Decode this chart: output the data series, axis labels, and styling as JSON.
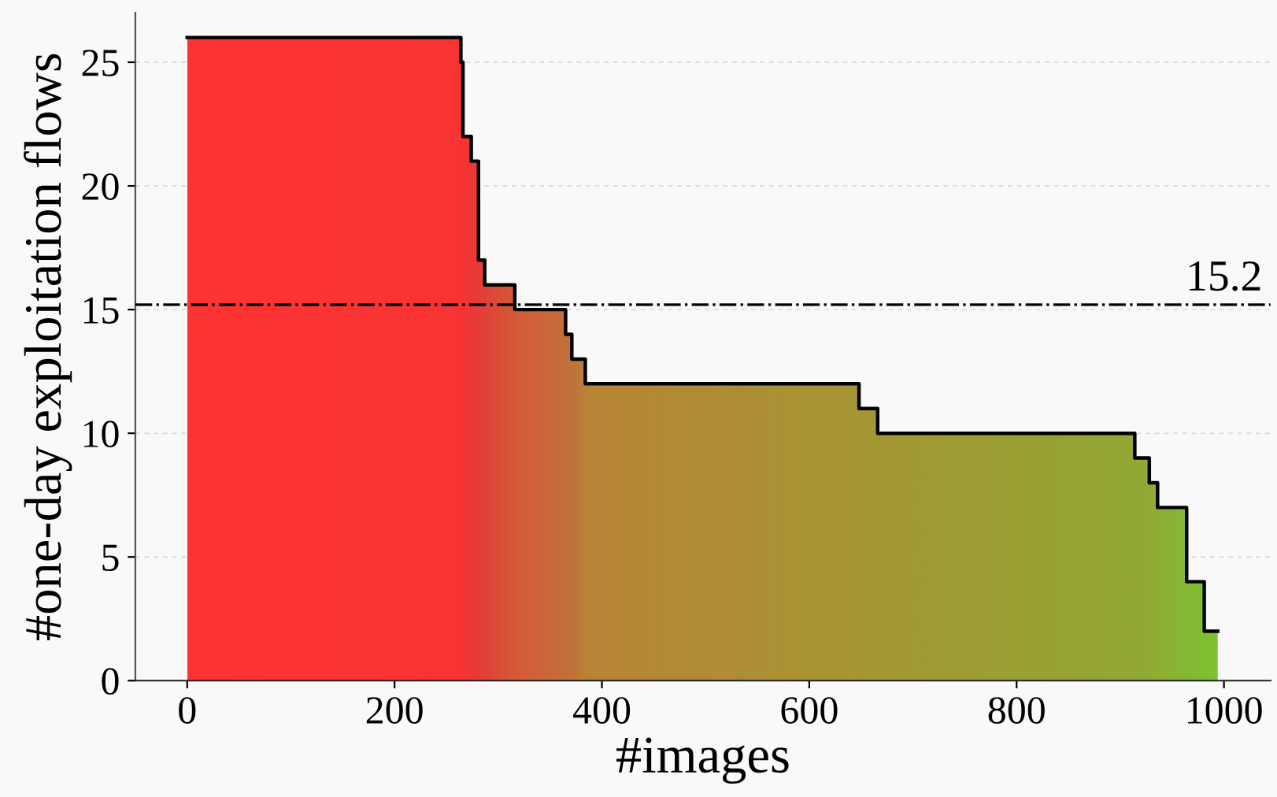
{
  "chart_data": {
    "type": "step",
    "xlabel": "#images",
    "ylabel": "#one-day exploitation flows",
    "x": [
      0,
      264,
      266,
      274,
      281,
      287,
      316,
      365,
      371,
      384,
      648,
      666,
      914,
      928,
      936,
      964,
      981,
      994
    ],
    "series": [
      {
        "color": "#000000",
        "values": [
          26,
          25,
          22,
          21,
          17,
          16,
          15,
          14,
          13,
          12,
          11,
          10,
          9,
          8,
          7,
          4,
          2,
          2
        ],
        "colors": [
          "#ff3333",
          "#f83434",
          "#f23535",
          "#ec3736",
          "#e63d37",
          "#e04338",
          "#d65a38",
          "#c4703a",
          "#c0733a",
          "#b98436",
          "#a59634",
          "#a39734",
          "#93a834",
          "#90ab34",
          "#8eae34",
          "#85b933",
          "#80bf32",
          "#7ec232"
        ]
      }
    ],
    "xlim": [
      -50,
      1045
    ],
    "ylim": [
      0,
      27
    ],
    "xticks": [
      0,
      200,
      400,
      600,
      800,
      1000
    ],
    "yticks": [
      0,
      5,
      10,
      15,
      20,
      25
    ],
    "grid": "y",
    "ref_lines": [
      {
        "axis": "y",
        "value": 15.2,
        "label": "15.2",
        "line_style": "dashdot",
        "color": "#000000"
      }
    ]
  }
}
